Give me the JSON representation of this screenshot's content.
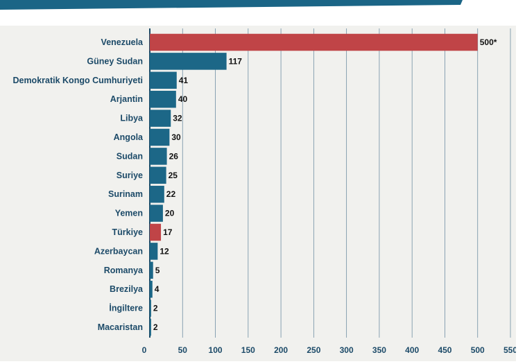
{
  "colors": {
    "header_band": "#1b6586",
    "bar_default": "#1c6787",
    "bar_highlight": "#c04447",
    "grid": "#6f8fa3",
    "zero_axis": "#1b4a66",
    "panel_background": "#f1f1ee"
  },
  "chart_data": {
    "type": "bar",
    "orientation": "horizontal",
    "categories": [
      "Venezuela",
      "Güney Sudan",
      "Demokratik Kongo Cumhuriyeti",
      "Arjantin",
      "Libya",
      "Angola",
      "Sudan",
      "Suriye",
      "Surinam",
      "Yemen",
      "Türkiye",
      "Azerbaycan",
      "Romanya",
      "Brezilya",
      "İngiltere",
      "Macaristan"
    ],
    "values": [
      500,
      117,
      41,
      40,
      32,
      30,
      26,
      25,
      22,
      20,
      17,
      12,
      5,
      4,
      2,
      2
    ],
    "value_labels": [
      "500*",
      "117",
      "41",
      "40",
      "32",
      "30",
      "26",
      "25",
      "22",
      "20",
      "17",
      "12",
      "5",
      "4",
      "2",
      "2"
    ],
    "highlighted": [
      "Venezuela",
      "Türkiye"
    ],
    "xticks": [
      "0",
      "50",
      "100",
      "150",
      "200",
      "250",
      "300",
      "350",
      "400",
      "450",
      "500",
      "550"
    ],
    "xlim": [
      0,
      550
    ],
    "grid": true
  }
}
